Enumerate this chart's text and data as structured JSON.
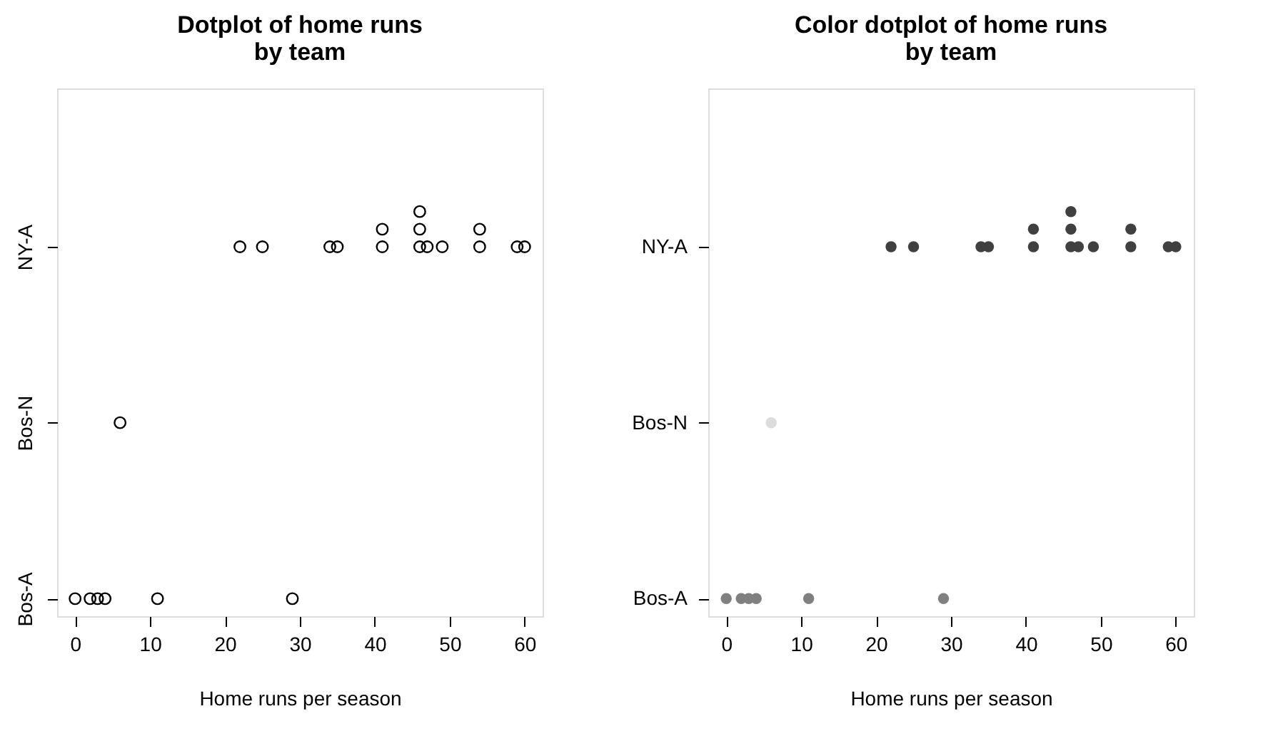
{
  "chart_data": [
    {
      "type": "scatter",
      "title": "Dotplot of home runs\nby team",
      "xlabel": "Home runs per season",
      "orientation": "horizontal",
      "categories": [
        "NY-A",
        "Bos-N",
        "Bos-A"
      ],
      "xlim": [
        -2.4,
        62.4
      ],
      "xticks": [
        0,
        10,
        20,
        30,
        40,
        50,
        60
      ],
      "marker": "circle",
      "grid": false,
      "series": [
        {
          "color": "#000000",
          "x": [
            "Bos-A",
            "Bos-A",
            "Bos-A",
            "Bos-A",
            "Bos-A",
            "Bos-A",
            "Bos-N",
            "NY-A",
            "NY-A",
            "NY-A",
            "NY-A",
            "NY-A",
            "NY-A",
            "NY-A",
            "NY-A",
            "NY-A",
            "NY-A",
            "NY-A",
            "NY-A",
            "NY-A",
            "NY-A",
            "NY-A"
          ],
          "values": [
            0,
            2,
            3,
            4,
            11,
            29,
            6,
            22,
            25,
            34,
            35,
            41,
            41,
            46,
            46,
            46,
            47,
            49,
            54,
            54,
            59,
            60
          ]
        }
      ]
    },
    {
      "type": "scatter",
      "title": "Color dotplot of home runs\nby team",
      "xlabel": "Home runs per season",
      "orientation": "horizontal",
      "categories": [
        "NY-A",
        "Bos-N",
        "Bos-A"
      ],
      "xlim": [
        -2.4,
        62.4
      ],
      "xticks": [
        0,
        10,
        20,
        30,
        40,
        50,
        60
      ],
      "marker": "circle",
      "grid": false,
      "series": [
        {
          "color": "#808080",
          "x": [
            "Bos-A",
            "Bos-A",
            "Bos-A",
            "Bos-A",
            "Bos-A",
            "Bos-A"
          ],
          "values": [
            0,
            2,
            3,
            4,
            11,
            29
          ]
        },
        {
          "color": "#dcdcdc",
          "x": [
            "Bos-N"
          ],
          "values": [
            6
          ]
        },
        {
          "color": "#404040",
          "x": [
            "NY-A",
            "NY-A",
            "NY-A",
            "NY-A",
            "NY-A",
            "NY-A",
            "NY-A",
            "NY-A",
            "NY-A",
            "NY-A",
            "NY-A",
            "NY-A",
            "NY-A",
            "NY-A",
            "NY-A"
          ],
          "values": [
            22,
            25,
            34,
            35,
            41,
            41,
            46,
            46,
            46,
            47,
            49,
            54,
            54,
            59,
            60
          ]
        }
      ]
    }
  ]
}
